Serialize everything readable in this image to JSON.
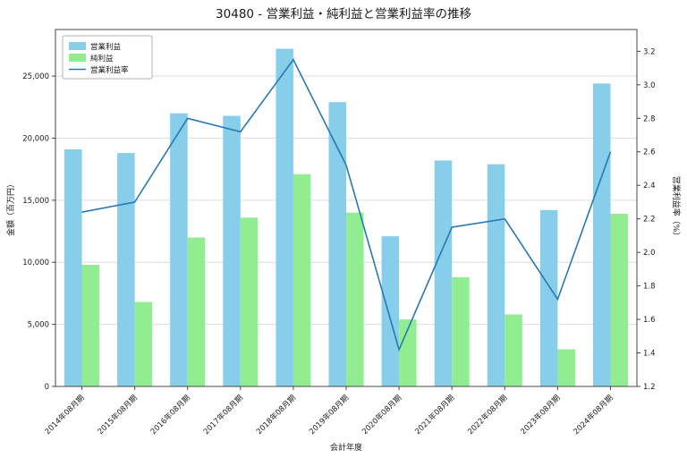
{
  "chart_data": {
    "type": "bar+line",
    "title": "30480 - 営業利益・純利益と営業利益率の推移",
    "xlabel": "会計年度",
    "ylabel_left": "金額（百万円）",
    "ylabel_right": "営業利益率（%）",
    "categories": [
      "2014年08月期",
      "2015年08月期",
      "2016年08月期",
      "2017年08月期",
      "2018年08月期",
      "2019年08月期",
      "2020年08月期",
      "2021年08月期",
      "2022年08月期",
      "2023年08月期",
      "2024年08月期"
    ],
    "series": [
      {
        "name": "営業利益",
        "type": "bar",
        "axis": "left",
        "color": "#87ceeb",
        "values": [
          19100,
          18800,
          22000,
          21800,
          27200,
          22900,
          12100,
          18200,
          17900,
          14200,
          24400
        ]
      },
      {
        "name": "純利益",
        "type": "bar",
        "axis": "left",
        "color": "#90ee90",
        "values": [
          9800,
          6800,
          12000,
          13600,
          17100,
          14000,
          5400,
          8800,
          5800,
          3000,
          13900
        ]
      },
      {
        "name": "営業利益率",
        "type": "line",
        "axis": "right",
        "color": "#2878b5",
        "values": [
          2.24,
          2.3,
          2.8,
          2.72,
          3.15,
          2.52,
          1.42,
          2.15,
          2.2,
          1.72,
          2.6
        ]
      }
    ],
    "left_axis": {
      "min": 0,
      "max": 28750,
      "ticks": [
        0,
        5000,
        10000,
        15000,
        20000,
        25000
      ]
    },
    "right_axis": {
      "min": 1.2,
      "max": 3.33,
      "ticks": [
        1.2,
        1.4,
        1.6,
        1.8,
        2.0,
        2.2,
        2.4,
        2.6,
        2.8,
        3.0,
        3.2
      ]
    },
    "grid": true,
    "legend_position": "upper left",
    "colors": {
      "grid": "#dcdcdc",
      "spine": "#444444",
      "legend_border": "#b3b3b3",
      "background": "#ffffff"
    }
  }
}
